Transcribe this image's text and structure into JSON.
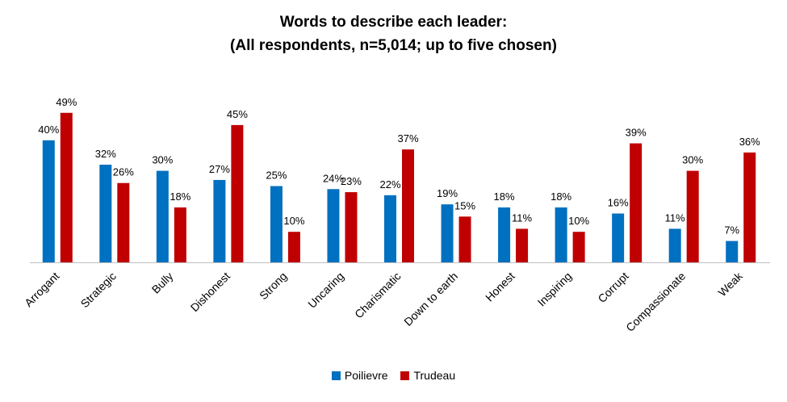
{
  "chart_data": {
    "type": "bar",
    "title": "Words to describe each leader:",
    "subtitle": "(All respondents, n=5,014; up to five chosen)",
    "categories": [
      "Arrogant",
      "Strategic",
      "Bully",
      "Dishonest",
      "Strong",
      "Uncaring",
      "Charismatic",
      "Down to earth",
      "Honest",
      "Inspiring",
      "Corrupt",
      "Compassionate",
      "Weak"
    ],
    "series": [
      {
        "name": "Poilievre",
        "color": "#0070C0",
        "values": [
          40,
          32,
          30,
          27,
          25,
          24,
          22,
          19,
          18,
          18,
          16,
          11,
          7
        ]
      },
      {
        "name": "Trudeau",
        "color": "#C00000",
        "values": [
          49,
          26,
          18,
          45,
          10,
          23,
          37,
          15,
          11,
          10,
          39,
          30,
          36
        ]
      }
    ],
    "value_suffix": "%",
    "ylim": [
      0,
      50
    ],
    "grid": false,
    "legend": "bottom"
  }
}
